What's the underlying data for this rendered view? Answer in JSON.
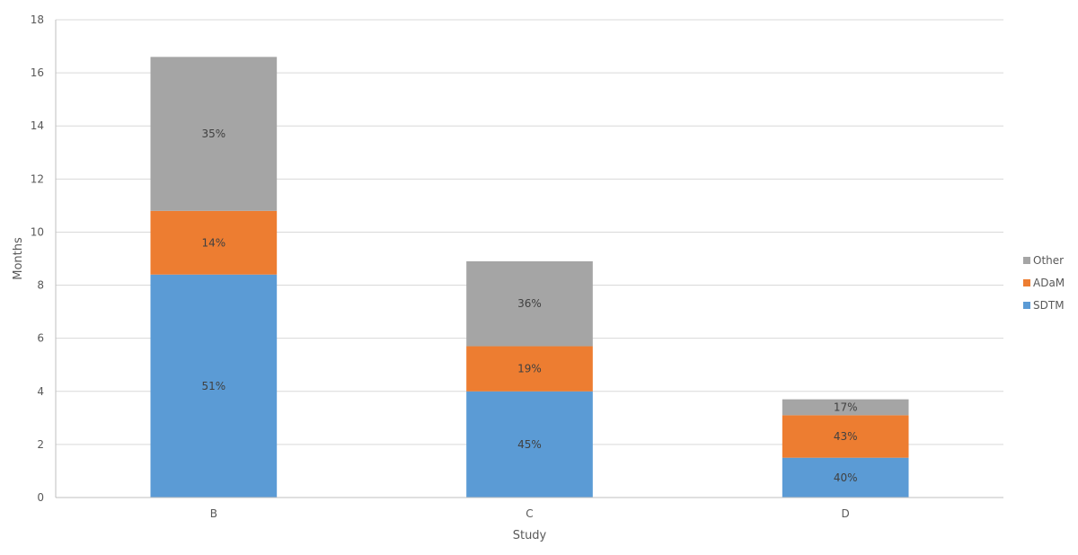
{
  "chart_data": {
    "type": "bar",
    "stacked": true,
    "categories": [
      "B",
      "C",
      "D"
    ],
    "series": [
      {
        "name": "SDTM",
        "color": "#5b9bd5",
        "values": [
          8.4,
          4.0,
          1.5
        ],
        "labels": [
          "51%",
          "45%",
          "40%"
        ]
      },
      {
        "name": "ADaM",
        "color": "#ed7d31",
        "values": [
          2.4,
          1.7,
          1.6
        ],
        "labels": [
          "14%",
          "19%",
          "43%"
        ]
      },
      {
        "name": "Other",
        "color": "#a5a5a5",
        "values": [
          5.8,
          3.2,
          0.6
        ],
        "labels": [
          "35%",
          "36%",
          "17%"
        ]
      }
    ],
    "xlabel": "Study",
    "ylabel": "Months",
    "ylim": [
      0,
      18
    ],
    "yticks": [
      0,
      2,
      4,
      6,
      8,
      10,
      12,
      14,
      16,
      18
    ],
    "grid": true,
    "legend_position": "right",
    "legend_order": [
      "Other",
      "ADaM",
      "SDTM"
    ]
  }
}
